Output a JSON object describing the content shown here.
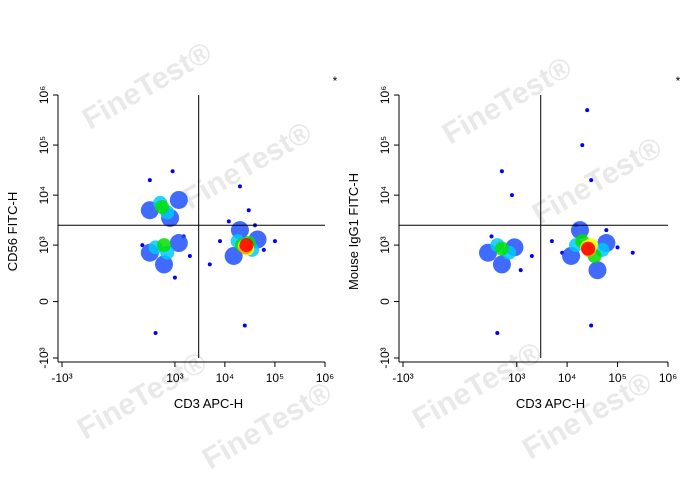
{
  "watermark": "FineTest®",
  "chart_data": [
    {
      "type": "scatter",
      "annotation": "*",
      "x_label": "CD3 APC-H",
      "y_label": "CD56 FITC-H",
      "xlim": [
        -1000,
        1000000
      ],
      "ylim": [
        -1000,
        1000000
      ],
      "xticks": [
        {
          "value": -1000,
          "label": "-10³"
        },
        {
          "value": 1000,
          "label": "10³"
        },
        {
          "value": 10000,
          "label": "10⁴"
        },
        {
          "value": 100000,
          "label": "10⁵"
        },
        {
          "value": 1000000,
          "label": "10⁶"
        }
      ],
      "yticks": [
        {
          "value": -1000,
          "label": "-10³"
        },
        0,
        {
          "value": 1000,
          "label": "10³"
        },
        {
          "value": 10000,
          "label": "10⁴"
        },
        {
          "value": 100000,
          "label": "10⁵"
        },
        {
          "value": 1000000,
          "label": "10⁶"
        }
      ],
      "gate_x": 3000,
      "gate_y": 2500,
      "x": [
        200,
        1500,
        2000,
        8000,
        60000,
        12000,
        300,
        900,
        20000,
        30000,
        5000,
        400,
        25000,
        40000,
        100000,
        1000,
        300,
        1200,
        800,
        300,
        1200,
        600,
        15000,
        45000,
        20000,
        500,
        700,
        400,
        700,
        18000,
        35000,
        550,
        600,
        22000,
        30000,
        25000,
        28000,
        26000,
        27000
      ],
      "y": [
        1000,
        1500,
        600,
        1200,
        800,
        3000,
        20000,
        30000,
        15000,
        5000,
        400,
        -300,
        -200,
        2500,
        1200,
        200,
        5000,
        8000,
        3500,
        700,
        1100,
        400,
        600,
        1300,
        2000,
        7000,
        4500,
        900,
        700,
        1200,
        800,
        5800,
        1000,
        1000,
        1100,
        950,
        850,
        900,
        1000
      ],
      "colors": [
        "#0000ff",
        "#0000ff",
        "#0000ff",
        "#0000ff",
        "#0000ff",
        "#0000ff",
        "#0000ff",
        "#0000ff",
        "#0000ff",
        "#0000ff",
        "#0000ff",
        "#0000ff",
        "#0000ff",
        "#0000ff",
        "#0000ff",
        "#0000ff",
        "#2050ff",
        "#2050ff",
        "#2050ff",
        "#2050ff",
        "#2050ff",
        "#2050ff",
        "#2050ff",
        "#2050ff",
        "#2050ff",
        "#00c8ff",
        "#00c8ff",
        "#00c8ff",
        "#00c8ff",
        "#00c8ff",
        "#00c8ff",
        "#00e000",
        "#00e000",
        "#00e000",
        "#00e000",
        "#ffff00",
        "#ffff00",
        "#ff9900",
        "#ff0000"
      ]
    },
    {
      "type": "scatter",
      "annotation": "*",
      "x_label": "CD3 APC-H",
      "y_label": "Mouse IgG1 FITC-H",
      "xlim": [
        -1000,
        1000000
      ],
      "ylim": [
        -1000,
        1000000
      ],
      "xticks": [
        {
          "value": -1000,
          "label": "-10³"
        },
        {
          "value": 1000,
          "label": "10³"
        },
        {
          "value": 10000,
          "label": "10⁴"
        },
        {
          "value": 100000,
          "label": "10⁵"
        },
        {
          "value": 1000000,
          "label": "10⁶"
        }
      ],
      "yticks": [
        {
          "value": -1000,
          "label": "-10³"
        },
        0,
        {
          "value": 1000,
          "label": "10³"
        },
        {
          "value": 10000,
          "label": "10⁴"
        },
        {
          "value": 100000,
          "label": "10⁵"
        },
        {
          "value": 1000000,
          "label": "10⁶"
        }
      ],
      "gate_x": 3000,
      "gate_y": 2500,
      "x": [
        300,
        2000,
        800,
        500,
        20000,
        25000,
        30000,
        8000,
        100000,
        200000,
        5000,
        400,
        30000,
        60000,
        15000,
        1200,
        250,
        900,
        500,
        12000,
        60000,
        18000,
        40000,
        400,
        700,
        15000,
        50000,
        500,
        20000,
        35000,
        25000,
        30000,
        27000,
        26000
      ],
      "y": [
        1500,
        600,
        10000,
        30000,
        100000,
        500000,
        20000,
        700,
        900,
        700,
        1200,
        -300,
        -200,
        2000,
        2500,
        300,
        700,
        900,
        400,
        600,
        1100,
        2000,
        300,
        1000,
        700,
        1000,
        800,
        850,
        1200,
        600,
        900,
        1000,
        800,
        850
      ],
      "colors": [
        "#0000ff",
        "#0000ff",
        "#0000ff",
        "#0000ff",
        "#0000ff",
        "#0000ff",
        "#0000ff",
        "#0000ff",
        "#0000ff",
        "#0000ff",
        "#0000ff",
        "#0000ff",
        "#0000ff",
        "#0000ff",
        "#0000ff",
        "#0000ff",
        "#2050ff",
        "#2050ff",
        "#2050ff",
        "#2050ff",
        "#2050ff",
        "#2050ff",
        "#2050ff",
        "#00c8ff",
        "#00c8ff",
        "#00c8ff",
        "#00c8ff",
        "#00e000",
        "#00e000",
        "#00e000",
        "#ffff00",
        "#ffff00",
        "#ff9900",
        "#ff0000"
      ]
    }
  ]
}
